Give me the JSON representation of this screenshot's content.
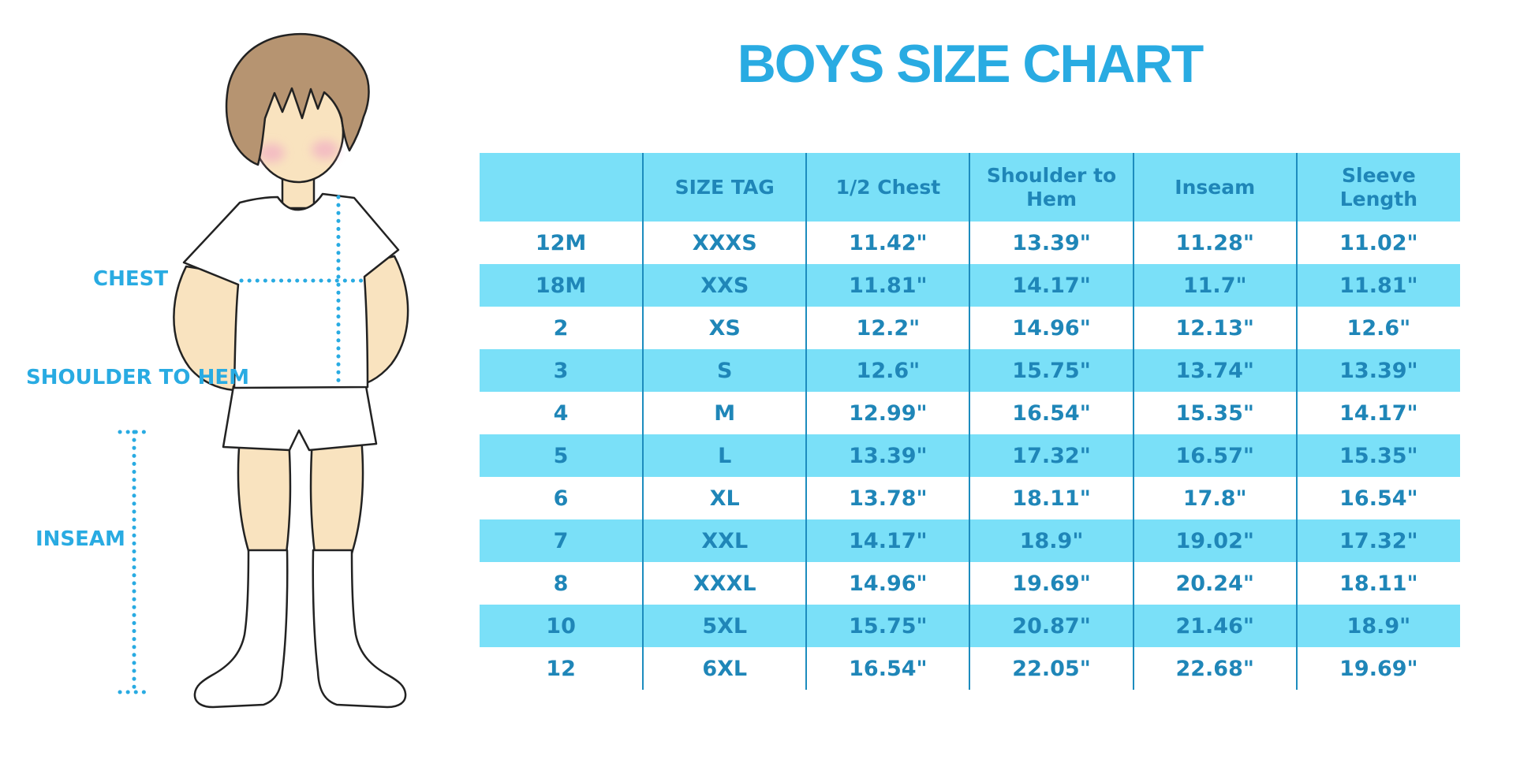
{
  "title": "BOYS SIZE CHART",
  "colors": {
    "accent": "#29ABE2",
    "row_cyan": "#7AE0F8",
    "table_text": "#1F86B8",
    "divider": "#1D8CBE"
  },
  "figure": {
    "illustration": "boy-standing-front",
    "labels": {
      "chest": "CHEST",
      "shoulder_to_hem": "SHOULDER TO HEM",
      "inseam": "INSEAM"
    }
  },
  "chart_data": {
    "type": "table",
    "title": "BOYS SIZE CHART",
    "columns": [
      "",
      "SIZE TAG",
      "1/2 Chest",
      "Shoulder to Hem",
      "Inseam",
      "Sleeve Length"
    ],
    "rows": [
      [
        "12M",
        "XXXS",
        "11.42\"",
        "13.39\"",
        "11.28\"",
        "11.02\""
      ],
      [
        "18M",
        "XXS",
        "11.81\"",
        "14.17\"",
        "11.7\"",
        "11.81\""
      ],
      [
        "2",
        "XS",
        "12.2\"",
        "14.96\"",
        "12.13\"",
        "12.6\""
      ],
      [
        "3",
        "S",
        "12.6\"",
        "15.75\"",
        "13.74\"",
        "13.39\""
      ],
      [
        "4",
        "M",
        "12.99\"",
        "16.54\"",
        "15.35\"",
        "14.17\""
      ],
      [
        "5",
        "L",
        "13.39\"",
        "17.32\"",
        "16.57\"",
        "15.35\""
      ],
      [
        "6",
        "XL",
        "13.78\"",
        "18.11\"",
        "17.8\"",
        "16.54\""
      ],
      [
        "7",
        "XXL",
        "14.17\"",
        "18.9\"",
        "19.02\"",
        "17.32\""
      ],
      [
        "8",
        "XXXL",
        "14.96\"",
        "19.69\"",
        "20.24\"",
        "18.11\""
      ],
      [
        "10",
        "5XL",
        "15.75\"",
        "20.87\"",
        "21.46\"",
        "18.9\""
      ],
      [
        "12",
        "6XL",
        "16.54\"",
        "22.05\"",
        "22.68\"",
        "19.69\""
      ]
    ]
  }
}
